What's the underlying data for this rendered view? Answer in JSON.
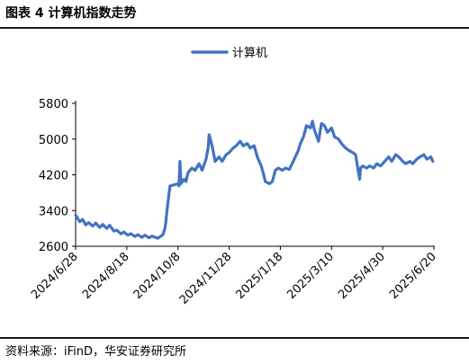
{
  "header": {
    "title": "图表 4 计算机指数走势"
  },
  "footer": {
    "source": "资料来源：iFinD，华安证券研究所"
  },
  "chart_data": {
    "type": "line",
    "title": "",
    "xlabel": "",
    "ylabel": "",
    "ylim": [
      2600,
      5800
    ],
    "yticks": [
      2600,
      3400,
      4200,
      5000,
      5800
    ],
    "grid": false,
    "legend_position": "top-center",
    "x_tick_labels": [
      "2024/6/28",
      "2024/8/18",
      "2024/10/8",
      "2024/11/28",
      "2025/1/18",
      "2025/3/10",
      "2025/4/30",
      "2025/6/20"
    ],
    "series": [
      {
        "name": "计算机",
        "color": "#4472c4",
        "points": [
          [
            "2024/6/28",
            3300
          ],
          [
            "2024/7/2",
            3150
          ],
          [
            "2024/7/5",
            3200
          ],
          [
            "2024/7/8",
            3080
          ],
          [
            "2024/7/11",
            3130
          ],
          [
            "2024/7/15",
            3050
          ],
          [
            "2024/7/18",
            3120
          ],
          [
            "2024/7/22",
            3020
          ],
          [
            "2024/7/25",
            3090
          ],
          [
            "2024/7/29",
            3000
          ],
          [
            "2024/8/1",
            3070
          ],
          [
            "2024/8/5",
            2940
          ],
          [
            "2024/8/8",
            2960
          ],
          [
            "2024/8/12",
            2880
          ],
          [
            "2024/8/15",
            2920
          ],
          [
            "2024/8/19",
            2850
          ],
          [
            "2024/8/22",
            2880
          ],
          [
            "2024/8/26",
            2820
          ],
          [
            "2024/8/29",
            2860
          ],
          [
            "2024/9/2",
            2800
          ],
          [
            "2024/9/5",
            2850
          ],
          [
            "2024/9/9",
            2790
          ],
          [
            "2024/9/12",
            2830
          ],
          [
            "2024/9/18",
            2780
          ],
          [
            "2024/9/23",
            2860
          ],
          [
            "2024/9/25",
            3000
          ],
          [
            "2024/9/26",
            3150
          ],
          [
            "2024/9/27",
            3400
          ],
          [
            "2024/9/30",
            3950
          ],
          [
            "2024/10/8",
            4000
          ],
          [
            "2024/10/9",
            3950
          ],
          [
            "2024/10/10",
            4500
          ],
          [
            "2024/10/11",
            4000
          ],
          [
            "2024/10/14",
            4100
          ],
          [
            "2024/10/16",
            4050
          ],
          [
            "2024/10/18",
            4250
          ],
          [
            "2024/10/22",
            4350
          ],
          [
            "2024/10/25",
            4300
          ],
          [
            "2024/10/29",
            4450
          ],
          [
            "2024/11/1",
            4300
          ],
          [
            "2024/11/5",
            4550
          ],
          [
            "2024/11/7",
            4800
          ],
          [
            "2024/11/8",
            5100
          ],
          [
            "2024/11/11",
            4850
          ],
          [
            "2024/11/14",
            4500
          ],
          [
            "2024/11/18",
            4600
          ],
          [
            "2024/11/21",
            4500
          ],
          [
            "2024/11/25",
            4650
          ],
          [
            "2024/11/28",
            4700
          ],
          [
            "2024/12/2",
            4800
          ],
          [
            "2024/12/5",
            4850
          ],
          [
            "2024/12/9",
            4950
          ],
          [
            "2024/12/12",
            4850
          ],
          [
            "2024/12/16",
            4900
          ],
          [
            "2024/12/19",
            4800
          ],
          [
            "2024/12/23",
            4850
          ],
          [
            "2024/12/26",
            4600
          ],
          [
            "2024/12/30",
            4400
          ],
          [
            "2025/1/2",
            4150
          ],
          [
            "2025/1/3",
            4050
          ],
          [
            "2025/1/7",
            4000
          ],
          [
            "2025/1/10",
            4050
          ],
          [
            "2025/1/13",
            4300
          ],
          [
            "2025/1/16",
            4350
          ],
          [
            "2025/1/20",
            4300
          ],
          [
            "2025/1/23",
            4350
          ],
          [
            "2025/1/27",
            4320
          ],
          [
            "2025/2/5",
            4750
          ],
          [
            "2025/2/7",
            4900
          ],
          [
            "2025/2/10",
            5050
          ],
          [
            "2025/2/13",
            5300
          ],
          [
            "2025/2/17",
            5250
          ],
          [
            "2025/2/19",
            5400
          ],
          [
            "2025/2/21",
            5200
          ],
          [
            "2025/2/25",
            4950
          ],
          [
            "2025/2/28",
            5350
          ],
          [
            "2025/3/3",
            5300
          ],
          [
            "2025/3/6",
            5150
          ],
          [
            "2025/3/10",
            5250
          ],
          [
            "2025/3/13",
            5050
          ],
          [
            "2025/3/17",
            5000
          ],
          [
            "2025/3/20",
            4900
          ],
          [
            "2025/3/24",
            4800
          ],
          [
            "2025/3/27",
            4750
          ],
          [
            "2025/3/31",
            4700
          ],
          [
            "2025/4/3",
            4650
          ],
          [
            "2025/4/7",
            4100
          ],
          [
            "2025/4/8",
            4350
          ],
          [
            "2025/4/10",
            4400
          ],
          [
            "2025/4/14",
            4350
          ],
          [
            "2025/4/17",
            4400
          ],
          [
            "2025/4/21",
            4350
          ],
          [
            "2025/4/24",
            4450
          ],
          [
            "2025/4/28",
            4400
          ],
          [
            "2025/5/6",
            4600
          ],
          [
            "2025/5/9",
            4500
          ],
          [
            "2025/5/13",
            4650
          ],
          [
            "2025/5/16",
            4600
          ],
          [
            "2025/5/20",
            4500
          ],
          [
            "2025/5/23",
            4450
          ],
          [
            "2025/5/27",
            4500
          ],
          [
            "2025/5/30",
            4450
          ],
          [
            "2025/6/3",
            4550
          ],
          [
            "2025/6/6",
            4600
          ],
          [
            "2025/6/10",
            4650
          ],
          [
            "2025/6/13",
            4550
          ],
          [
            "2025/6/17",
            4600
          ],
          [
            "2025/6/19",
            4500
          ]
        ]
      }
    ]
  }
}
